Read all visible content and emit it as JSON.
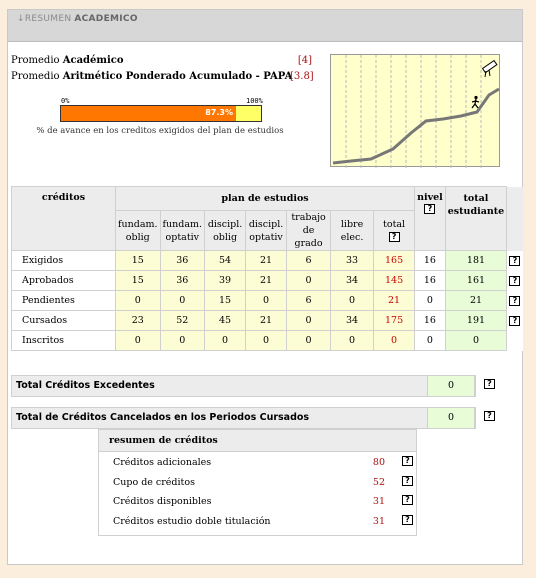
{
  "header": {
    "arrow": "↓",
    "title_prefix": "RESUMEN",
    "title_bold": "ACADEMICO"
  },
  "averages": [
    {
      "label_plain": "Promedio ",
      "label_bold": "Académico",
      "value": "[4]"
    },
    {
      "label_plain": "Promedio ",
      "label_bold": "Aritmético Ponderado Acumulado - PAPA",
      "value": "[3.8]"
    }
  ],
  "progress": {
    "min_label": "0%",
    "max_label": "100%",
    "value_label": "87.3%",
    "fraction": 0.873,
    "caption": "% de avance en los creditos exigidos del plan de estudios"
  },
  "graph": {
    "icon_start": "walking-person-icon",
    "icon_goal": "diploma-icon"
  },
  "table": {
    "head_creditos": "créditos",
    "head_plan": "plan de estudios",
    "head_nivel": "nivel",
    "head_total": "total estudiante",
    "subheaders": [
      "fundam. oblig",
      "fundam. optativ",
      "discipl. oblig",
      "discipl. optativ",
      "trabajo de grado",
      "libre elec.",
      "total"
    ],
    "rows": [
      {
        "label": "Exigidos",
        "values": [
          "15",
          "36",
          "54",
          "21",
          "6",
          "33",
          "165",
          "16",
          "181"
        ]
      },
      {
        "label": "Aprobados",
        "values": [
          "15",
          "36",
          "39",
          "21",
          "0",
          "34",
          "145",
          "16",
          "161"
        ]
      },
      {
        "label": "Pendientes",
        "values": [
          "0",
          "0",
          "15",
          "0",
          "6",
          "0",
          "21",
          "0",
          "21"
        ]
      },
      {
        "label": "Cursados",
        "values": [
          "23",
          "52",
          "45",
          "21",
          "0",
          "34",
          "175",
          "16",
          "191"
        ]
      },
      {
        "label": "Inscritos",
        "values": [
          "0",
          "0",
          "0",
          "0",
          "0",
          "0",
          "0",
          "0",
          "0"
        ]
      }
    ]
  },
  "excedentes": {
    "label": "Total Créditos Excedentes",
    "value": "0"
  },
  "cancelados": {
    "label": "Total de Créditos Cancelados en los Periodos Cursados",
    "value": "0"
  },
  "resumen": {
    "title": "resumen de créditos",
    "rows": [
      {
        "label": "Créditos adicionales",
        "value": "80"
      },
      {
        "label": "Cupo de créditos",
        "value": "52"
      },
      {
        "label": "Créditos disponibles",
        "value": "31"
      },
      {
        "label": "Créditos estudio doble titulación",
        "value": "31"
      }
    ]
  },
  "help_glyph": "?",
  "colors": {
    "progress_fill": "#ff7700",
    "progress_bg": "#ffff66",
    "value_red": "#cc0000",
    "total_green": "#e8fcd8",
    "plan_yellow": "#fdfdd5"
  }
}
